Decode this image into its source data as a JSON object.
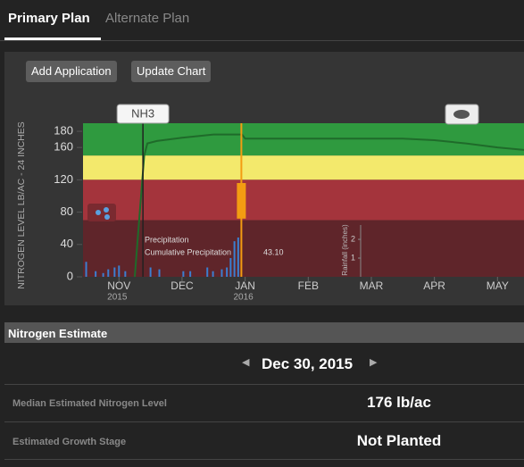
{
  "tabs": [
    "Primary Plan",
    "Alternate Plan"
  ],
  "buttons": [
    "Add Application",
    "Update Chart"
  ],
  "chart_data": {
    "type": "line",
    "y_label": "NITROGEN LEVEL LB/AC - 24 INCHES",
    "ylim": [
      0,
      190
    ],
    "yticks": [
      0,
      40,
      80,
      120,
      160,
      180
    ],
    "xlim": [
      -0.57,
      6.42
    ],
    "xticks": [
      {
        "value": 0,
        "label": "NOV"
      },
      {
        "value": 1,
        "label": "DEC"
      },
      {
        "value": 2,
        "label": "JAN"
      },
      {
        "value": 3,
        "label": "FEB"
      },
      {
        "value": 4,
        "label": "MAR"
      },
      {
        "value": 5,
        "label": "APR"
      },
      {
        "value": 6,
        "label": "MAY"
      }
    ],
    "xtick_years": [
      "2015",
      null,
      "2016",
      null,
      null,
      null,
      null
    ],
    "bands": [
      {
        "from": 150,
        "to": 190,
        "color": "#2f9a3f"
      },
      {
        "from": 120,
        "to": 150,
        "color": "#f3e96c"
      },
      {
        "from": 70,
        "to": 120,
        "color": "#a4343c"
      },
      {
        "from": 0,
        "to": 70,
        "color": "#5f252a"
      }
    ],
    "series": [
      {
        "color": "#1f6b2a",
        "x": [
          0.25,
          0.4,
          0.45,
          0.6,
          1.0,
          1.5,
          1.95,
          2.0,
          3.0,
          4.0,
          4.5,
          5.0,
          5.5,
          6.0,
          6.42
        ],
        "values": [
          0,
          150,
          165,
          168,
          172,
          176,
          176,
          171,
          171,
          171,
          171,
          169,
          165,
          160,
          157
        ]
      }
    ],
    "applications": [
      {
        "label": "NH3",
        "x": 0.38
      },
      {
        "x": 1.94,
        "low": 72,
        "high": 116,
        "color": "#f39c12"
      }
    ],
    "precipitation": {
      "name": "Precipitation",
      "cumulative_name": "Cumulative Precipitation",
      "cumulative_value": 43.1,
      "cumulative_value_label": "43.10",
      "axis_label": "Rainfall (inches)",
      "y2lim": [
        0,
        8.2
      ],
      "y2ticks": [
        1,
        2
      ],
      "color": "#3b7fd0",
      "x": [
        -0.52,
        -0.37,
        -0.25,
        -0.17,
        -0.07,
        0,
        0.1,
        0.5,
        0.64,
        1.02,
        1.13,
        1.4,
        1.49,
        1.63,
        1.71,
        1.77,
        1.83,
        1.89
      ],
      "values": [
        0.8,
        0.3,
        0.2,
        0.4,
        0.5,
        0.6,
        0.3,
        0.5,
        0.4,
        0.3,
        0.3,
        0.5,
        0.3,
        0.4,
        0.5,
        1.0,
        1.9,
        2.1
      ]
    }
  },
  "estimate": {
    "title": "Nitrogen Estimate",
    "date": "Dec 30, 2015",
    "rows": [
      [
        "Median Estimated Nitrogen Level",
        "176 lb/ac"
      ],
      [
        "Estimated Growth Stage",
        "Not Planted"
      ]
    ]
  }
}
